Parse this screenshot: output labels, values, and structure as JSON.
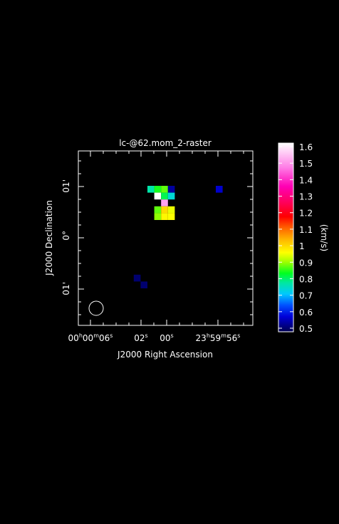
{
  "chart_data": {
    "type": "heatmap",
    "title": "lc-@62.mom_2-raster",
    "xlabel": "J2000 Right Ascension",
    "ylabel": "J2000 Declination",
    "x_ticks": [
      {
        "h": "00",
        "m": "00",
        "s": "06"
      },
      {
        "s": "02"
      },
      {
        "s": "00"
      },
      {
        "h": "23",
        "m": "59",
        "s": "56"
      }
    ],
    "y_ticks": [
      {
        "label": "01'"
      },
      {
        "label": "0°"
      },
      {
        "label": "01'"
      }
    ],
    "colorbar": {
      "label": "(km/s)",
      "min": 0.5,
      "max": 1.6,
      "ticks": [
        "1.6",
        "1.5",
        "1.4",
        "1.3",
        "1.2",
        "1.1",
        "1",
        "0.9",
        "0.8",
        "0.7",
        "0.6",
        "0.5"
      ]
    },
    "pixels": [
      {
        "col": 10,
        "row": 5,
        "value": 0.78
      },
      {
        "col": 11,
        "row": 5,
        "value": 0.85
      },
      {
        "col": 12,
        "row": 5,
        "value": 0.88
      },
      {
        "col": 13,
        "row": 5,
        "value": 0.55
      },
      {
        "col": 11,
        "row": 6,
        "value": 1.6
      },
      {
        "col": 12,
        "row": 6,
        "value": 0.82
      },
      {
        "col": 13,
        "row": 6,
        "value": 0.75
      },
      {
        "col": 12,
        "row": 7,
        "value": 1.5
      },
      {
        "col": 11,
        "row": 8,
        "value": 0.88
      },
      {
        "col": 12,
        "row": 8,
        "value": 1.0
      },
      {
        "col": 13,
        "row": 8,
        "value": 0.95
      },
      {
        "col": 11,
        "row": 9,
        "value": 0.9
      },
      {
        "col": 12,
        "row": 9,
        "value": 0.97
      },
      {
        "col": 13,
        "row": 9,
        "value": 0.96
      },
      {
        "col": 20,
        "row": 5,
        "value": 0.58
      },
      {
        "col": 8,
        "row": 18,
        "value": 0.52
      },
      {
        "col": 9,
        "row": 19,
        "value": 0.52
      }
    ],
    "beam": "circle"
  }
}
